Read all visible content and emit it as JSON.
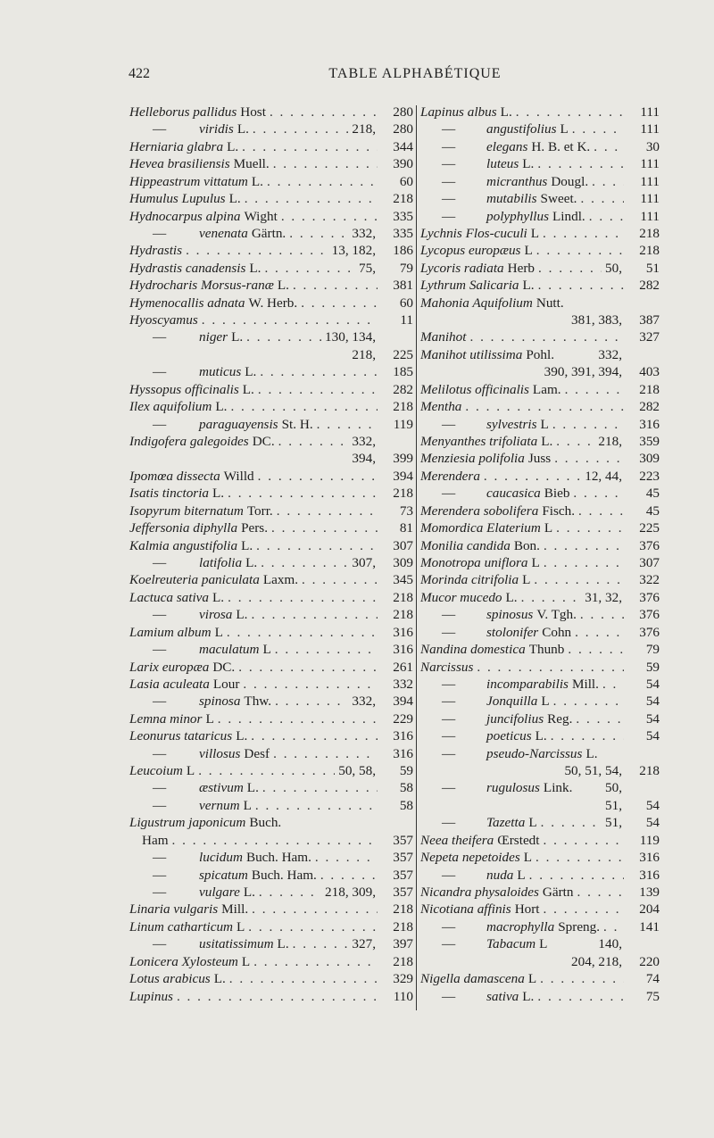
{
  "header": {
    "page_number": "422",
    "title": "TABLE ALPHABÉTIQUE"
  },
  "left_column": [
    {
      "n": "Helleborus pallidus",
      "a": "Host",
      "m": "",
      "p": "280"
    },
    {
      "d": true,
      "n": "viridis",
      "a": "L.",
      "m": "218,",
      "p": "280"
    },
    {
      "n": "Herniaria glabra",
      "a": "L.",
      "m": "",
      "p": "344"
    },
    {
      "n": "Hevea brasiliensis",
      "a": "Muell.",
      "m": "",
      "p": "390"
    },
    {
      "n": "Hippeastrum vittatum",
      "a": "L.",
      "m": "",
      "p": "60"
    },
    {
      "n": "Humulus Lupulus",
      "a": "L.",
      "m": "",
      "p": "218"
    },
    {
      "n": "Hydnocarpus alpina",
      "a": "Wight",
      "m": "",
      "p": "335"
    },
    {
      "d": true,
      "n": "venenata",
      "a": "Gärtn.",
      "m": "332,",
      "p": "335"
    },
    {
      "n": "Hydrastis",
      "a": "",
      "m": "13, 182,",
      "p": "186"
    },
    {
      "n": "Hydrastis canadensis",
      "a": "L.",
      "m": "75,",
      "p": "79"
    },
    {
      "n": "Hydrocharis Morsus-ranæ",
      "a": "L.",
      "m": "",
      "p": "381"
    },
    {
      "n": "Hymenocallis adnata",
      "a": "W. Herb.",
      "m": "",
      "p": "60"
    },
    {
      "n": "Hyoscyamus",
      "a": "",
      "m": "",
      "p": "11"
    },
    {
      "d": true,
      "n": "niger",
      "a": "L.",
      "m": "130, 134,",
      "p": ""
    },
    {
      "m": "218,",
      "p": "225"
    },
    {
      "d": true,
      "n": "muticus",
      "a": "L.",
      "m": "",
      "p": "185"
    },
    {
      "n": "Hyssopus officinalis",
      "a": "L.",
      "m": "",
      "p": "282"
    },
    {
      "n": "Ilex aquifolium",
      "a": "L.",
      "m": "",
      "p": "218"
    },
    {
      "d": true,
      "n": "paraguayensis",
      "a": "St. H.",
      "m": "",
      "p": "119"
    },
    {
      "n": "Indigofera galegoides",
      "a": "DC.",
      "m": "332,",
      "p": ""
    },
    {
      "m": "394,",
      "p": "399"
    },
    {
      "n": "Ipomœa dissecta",
      "a": "Willd",
      "m": "",
      "p": "394"
    },
    {
      "n": "Isatis tinctoria",
      "a": "L.",
      "m": "",
      "p": "218"
    },
    {
      "n": "Isopyrum biternatum",
      "a": "Torr.",
      "m": "",
      "p": "73"
    },
    {
      "n": "Jeffersonia diphylla",
      "a": "Pers.",
      "m": "",
      "p": "81"
    },
    {
      "n": "Kalmia angustifolia",
      "a": "L.",
      "m": "",
      "p": "307"
    },
    {
      "d": true,
      "n": "latifolia",
      "a": "L.",
      "m": "307,",
      "p": "309"
    },
    {
      "n": "Koelreuteria paniculata",
      "a": "Laxm.",
      "m": "",
      "p": "345"
    },
    {
      "n": "Lactuca sativa",
      "a": "L.",
      "m": "",
      "p": "218"
    },
    {
      "d": true,
      "n": "virosa",
      "a": "L.",
      "m": "",
      "p": "218"
    },
    {
      "n": "Lamium album",
      "a": "L",
      "m": "",
      "p": "316"
    },
    {
      "d": true,
      "n": "maculatum",
      "a": "L",
      "m": "",
      "p": "316"
    },
    {
      "n": "Larix europæa",
      "a": "DC.",
      "m": "",
      "p": "261"
    },
    {
      "n": "Lasia aculeata",
      "a": "Lour",
      "m": "",
      "p": "332"
    },
    {
      "d": true,
      "n": "spinosa",
      "a": "Thw.",
      "m": "332,",
      "p": "394"
    },
    {
      "n": "Lemna minor",
      "a": "L",
      "m": "",
      "p": "229"
    },
    {
      "n": "Leonurus tataricus",
      "a": "L.",
      "m": "",
      "p": "316"
    },
    {
      "d": true,
      "n": "villosus",
      "a": "Desf",
      "m": "",
      "p": "316"
    },
    {
      "n": "Leucoium",
      "a": "L",
      "m": "50, 58,",
      "p": "59"
    },
    {
      "d": true,
      "n": "æstivum",
      "a": "L.",
      "m": "",
      "p": "58"
    },
    {
      "d": true,
      "n": "vernum",
      "a": "L",
      "m": "",
      "p": "58"
    },
    {
      "n": "Ligustrum japonicum",
      "a": "Buch.",
      "m": "",
      "p": "",
      "nodots": true
    },
    {
      "c": "Ham",
      "m": "",
      "p": "357"
    },
    {
      "d": true,
      "n": "lucidum",
      "a": "Buch. Ham.",
      "m": "",
      "p": "357"
    },
    {
      "d": true,
      "n": "spicatum",
      "a": "Buch. Ham.",
      "m": "",
      "p": "357"
    },
    {
      "d": true,
      "n": "vulgare",
      "a": "L.",
      "m": "218, 309,",
      "p": "357"
    },
    {
      "n": "Linaria vulgaris",
      "a": "Mill.",
      "m": "",
      "p": "218"
    },
    {
      "n": "Linum catharticum",
      "a": "L",
      "m": "",
      "p": "218"
    },
    {
      "d": true,
      "n": "usitatissimum",
      "a": "L.",
      "m": "327,",
      "p": "397"
    },
    {
      "n": "Lonicera Xylosteum",
      "a": "L",
      "m": "",
      "p": "218"
    },
    {
      "n": "Lotus arabicus",
      "a": "L.",
      "m": "",
      "p": "329"
    },
    {
      "n": "Lupinus",
      "a": "",
      "m": "",
      "p": "110"
    }
  ],
  "right_column": [
    {
      "n": "Lapinus albus",
      "a": "L.",
      "m": "",
      "p": "111"
    },
    {
      "d": true,
      "n": "angustifolius",
      "a": "L",
      "m": "",
      "p": "111"
    },
    {
      "d": true,
      "n": "elegans",
      "a": "H. B. et K.",
      "m": "",
      "p": "30"
    },
    {
      "d": true,
      "n": "luteus",
      "a": "L.",
      "m": "",
      "p": "111"
    },
    {
      "d": true,
      "n": "micranthus",
      "a": "Dougl.",
      "m": "",
      "p": "111"
    },
    {
      "d": true,
      "n": "mutabilis",
      "a": "Sweet.",
      "m": "",
      "p": "111"
    },
    {
      "d": true,
      "n": "polyphyllus",
      "a": "Lindl.",
      "m": "",
      "p": "111"
    },
    {
      "n": "Lychnis Flos-cuculi",
      "a": "L",
      "m": "",
      "p": "218"
    },
    {
      "n": "Lycopus europæus",
      "a": "L",
      "m": "",
      "p": "218"
    },
    {
      "n": "Lycoris radiata",
      "a": "Herb",
      "m": "50,",
      "p": "51"
    },
    {
      "n": "Lythrum Salicaria",
      "a": "L.",
      "m": "",
      "p": "282"
    },
    {
      "n": "Mahonia Aquifolium",
      "a": "Nutt.",
      "m": "",
      "p": "",
      "nodots": true
    },
    {
      "m": "381, 383,",
      "p": "387"
    },
    {
      "n": "Manihot",
      "a": "",
      "m": "",
      "p": "327"
    },
    {
      "n": "Manihot utilissima",
      "a": "Pohl.",
      "m": "332,",
      "p": "",
      "nodots": true
    },
    {
      "m": "390, 391, 394,",
      "p": "403"
    },
    {
      "n": "Melilotus officinalis",
      "a": "Lam.",
      "m": "",
      "p": "218"
    },
    {
      "n": "Mentha",
      "a": "",
      "m": "",
      "p": "282"
    },
    {
      "d": true,
      "n": "sylvestris",
      "a": "L",
      "m": "",
      "p": "316"
    },
    {
      "n": "Menyanthes trifoliata",
      "a": "L.",
      "m": "218,",
      "p": "359"
    },
    {
      "n": "Menziesia polifolia",
      "a": "Juss",
      "m": "",
      "p": "309"
    },
    {
      "n": "Merendera",
      "a": "",
      "m": "12, 44,",
      "p": "223"
    },
    {
      "d": true,
      "n": "caucasica",
      "a": "Bieb",
      "m": "",
      "p": "45"
    },
    {
      "n": "Merendera sobolifera",
      "a": "Fisch.",
      "m": "",
      "p": "45"
    },
    {
      "n": "Momordica Elaterium",
      "a": "L",
      "m": "",
      "p": "225"
    },
    {
      "n": "Monilia candida",
      "a": "Bon.",
      "m": "",
      "p": "376"
    },
    {
      "n": "Monotropa uniflora",
      "a": "L",
      "m": "",
      "p": "307"
    },
    {
      "n": "Morinda citrifolia",
      "a": "L",
      "m": "",
      "p": "322"
    },
    {
      "n": "Mucor mucedo",
      "a": "L.",
      "m": "31, 32,",
      "p": "376"
    },
    {
      "d": true,
      "n": "spinosus",
      "a": "V. Tgh.",
      "m": "",
      "p": "376"
    },
    {
      "d": true,
      "n": "stolonifer",
      "a": "Cohn",
      "m": "",
      "p": "376"
    },
    {
      "n": "Nandina domestica",
      "a": "Thunb",
      "m": "",
      "p": "79"
    },
    {
      "n": "Narcissus",
      "a": "",
      "m": "",
      "p": "59"
    },
    {
      "d": true,
      "n": "incomparabilis",
      "a": "Mill.",
      "m": "",
      "p": "54"
    },
    {
      "d": true,
      "n": "Jonquilla",
      "a": "L",
      "m": "",
      "p": "54"
    },
    {
      "d": true,
      "n": "juncifolius",
      "a": "Reg.",
      "m": "",
      "p": "54"
    },
    {
      "d": true,
      "n": "poeticus",
      "a": "L.",
      "m": "",
      "p": "54"
    },
    {
      "d": true,
      "n": "pseudo-Narcissus",
      "a": "L.",
      "m": "",
      "p": "",
      "nodots": true
    },
    {
      "m": "50, 51, 54,",
      "p": "218"
    },
    {
      "d": true,
      "n": "rugulosus",
      "a": "Link.",
      "m": "50,",
      "p": "",
      "nodots": true
    },
    {
      "m": "51,",
      "p": "54"
    },
    {
      "d": true,
      "n": "Tazetta",
      "a": "L",
      "m": "51,",
      "p": "54"
    },
    {
      "n": "Neea theifera",
      "a": "Œrstedt",
      "m": "",
      "p": "119"
    },
    {
      "n": "Nepeta nepetoides",
      "a": "L",
      "m": "",
      "p": "316"
    },
    {
      "d": true,
      "n": "nuda",
      "a": "L",
      "m": "",
      "p": "316"
    },
    {
      "n": "Nicandra physaloides",
      "a": "Gärtn",
      "m": "",
      "p": "139"
    },
    {
      "n": "Nicotiana affinis",
      "a": "Hort",
      "m": "",
      "p": "204"
    },
    {
      "d": true,
      "n": "macrophylla",
      "a": "Spreng.",
      "m": "",
      "p": "141"
    },
    {
      "d": true,
      "n": "Tabacum",
      "a": "L",
      "m": "140,",
      "p": "",
      "nodots": true
    },
    {
      "m": "204, 218,",
      "p": "220"
    },
    {
      "n": "Nigella damascena",
      "a": "L",
      "m": "",
      "p": "74"
    },
    {
      "d": true,
      "n": "sativa",
      "a": "L.",
      "m": "",
      "p": "75"
    }
  ]
}
